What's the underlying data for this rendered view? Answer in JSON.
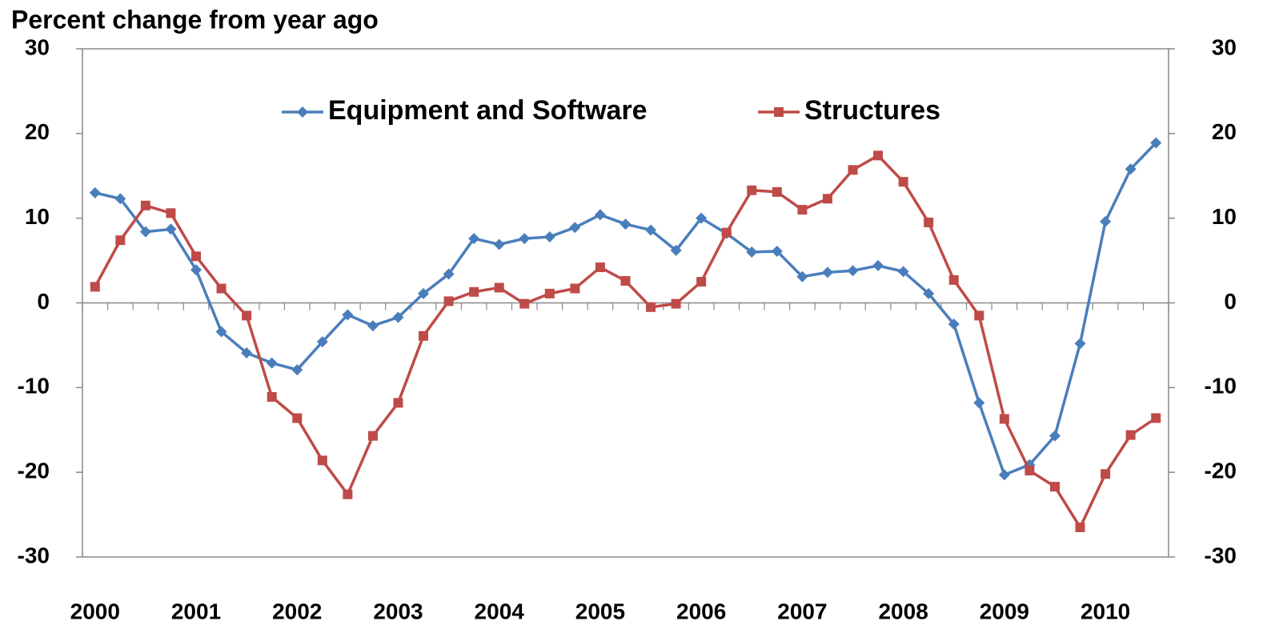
{
  "chart_data": {
    "type": "line",
    "y_label": "Percent change from year ago",
    "categories": [
      "2000",
      null,
      null,
      null,
      "2001",
      null,
      null,
      null,
      "2002",
      null,
      null,
      null,
      "2003",
      null,
      null,
      null,
      "2004",
      null,
      null,
      null,
      "2005",
      null,
      null,
      null,
      "2006",
      null,
      null,
      null,
      "2007",
      null,
      null,
      null,
      "2008",
      null,
      null,
      null,
      "2009",
      null,
      null,
      null,
      "2010",
      null,
      null
    ],
    "series": [
      {
        "name": "Equipment and Software",
        "color": "#4a7ebb",
        "marker": "diamond",
        "values": [
          13.0,
          12.3,
          8.4,
          8.7,
          3.9,
          -3.4,
          -5.9,
          -7.1,
          -7.9,
          -4.6,
          -1.4,
          -2.7,
          -1.7,
          1.1,
          3.4,
          7.6,
          6.9,
          7.6,
          7.8,
          8.9,
          10.4,
          9.3,
          8.6,
          6.2,
          10.0,
          8.2,
          6.0,
          6.1,
          3.1,
          3.6,
          3.8,
          4.4,
          3.7,
          1.1,
          -2.5,
          -11.8,
          -20.3,
          -19.1,
          -15.7,
          -4.8,
          9.6,
          15.8,
          18.9
        ]
      },
      {
        "name": "Structures",
        "color": "#be4b48",
        "marker": "square",
        "values": [
          1.9,
          7.4,
          11.5,
          10.6,
          5.5,
          1.7,
          -1.5,
          -11.1,
          -13.6,
          -18.6,
          -22.6,
          -15.7,
          -11.8,
          -3.9,
          0.2,
          1.3,
          1.8,
          -0.1,
          1.1,
          1.7,
          4.2,
          2.6,
          -0.5,
          -0.1,
          2.5,
          8.3,
          13.3,
          13.1,
          11.0,
          12.3,
          15.7,
          17.4,
          14.3,
          9.5,
          2.7,
          -1.5,
          -13.7,
          -19.8,
          -21.7,
          -26.5,
          -20.2,
          -15.6,
          -13.6
        ]
      }
    ],
    "ylim": [
      -30,
      30
    ],
    "yticks": [
      -30,
      -20,
      -10,
      0,
      10,
      20,
      30
    ],
    "y2lim": [
      -30,
      30
    ],
    "y2ticks": [
      -30,
      -20,
      -10,
      0,
      10,
      20,
      30
    ],
    "grid": false,
    "legend": "top"
  }
}
